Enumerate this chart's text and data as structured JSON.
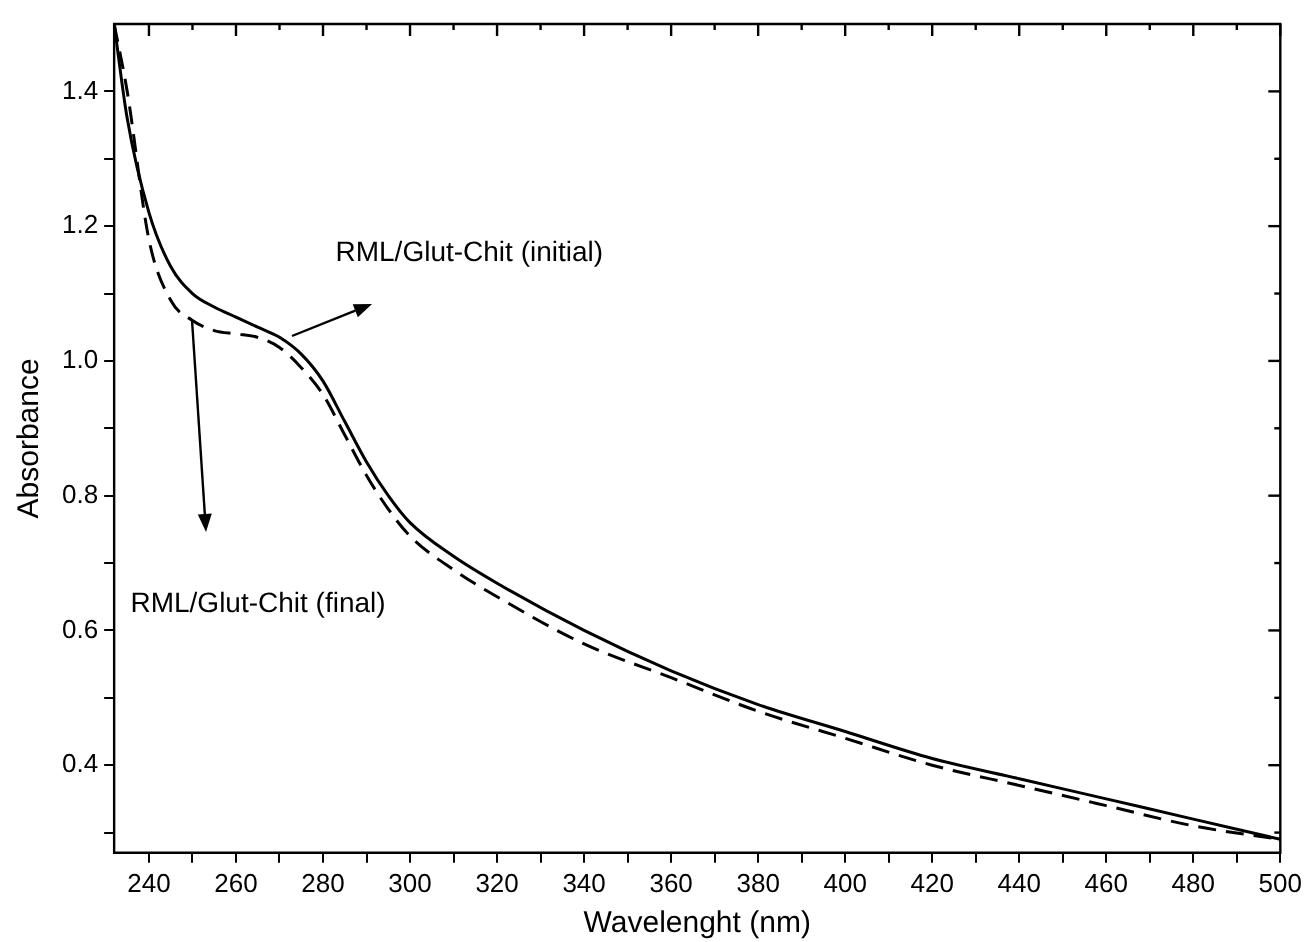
{
  "chart_data": {
    "type": "line",
    "xlabel": "Wavelenght (nm)",
    "ylabel": "Absorbance",
    "xlim": [
      232,
      500
    ],
    "ylim": [
      0.27,
      1.5
    ],
    "xticks": [
      240,
      {
        "value": 250,
        "label": null
      },
      260,
      {
        "value": 270,
        "label": null
      },
      280,
      {
        "value": 290,
        "label": null
      },
      300,
      {
        "value": 310,
        "label": null
      },
      320,
      {
        "value": 330,
        "label": null
      },
      340,
      {
        "value": 350,
        "label": null
      },
      360,
      {
        "value": 370,
        "label": null
      },
      380,
      {
        "value": 390,
        "label": null
      },
      400,
      {
        "value": 410,
        "label": null
      },
      420,
      {
        "value": 430,
        "label": null
      },
      440,
      {
        "value": 450,
        "label": null
      },
      460,
      {
        "value": 470,
        "label": null
      },
      480,
      {
        "value": 490,
        "label": null
      },
      500
    ],
    "yticks": [
      {
        "value": 0.3,
        "label": null
      },
      {
        "value": 0.4,
        "label": "0.4"
      },
      {
        "value": 0.5,
        "label": null
      },
      {
        "value": 0.6,
        "label": "0.6"
      },
      {
        "value": 0.7,
        "label": null
      },
      {
        "value": 0.8,
        "label": "0.8"
      },
      {
        "value": 0.9,
        "label": null
      },
      {
        "value": 1.0,
        "label": "1.0"
      },
      {
        "value": 1.1,
        "label": null
      },
      {
        "value": 1.2,
        "label": "1.2"
      },
      {
        "value": 1.3,
        "label": null
      },
      {
        "value": 1.4,
        "label": "1.4"
      }
    ],
    "annotations": [
      "RML/Glut-Chit (initial)",
      "RML/Glut-Chit (final)"
    ],
    "grid": false,
    "legend": false,
    "marker": "none",
    "x": [
      232,
      235,
      240,
      245,
      250,
      255,
      260,
      265,
      270,
      275,
      280,
      285,
      290,
      295,
      300,
      310,
      320,
      340,
      360,
      380,
      400,
      420,
      440,
      460,
      480,
      500
    ],
    "series": [
      {
        "color": "#000000",
        "line_style": "solid",
        "values": [
          1.5,
          1.36,
          1.22,
          1.14,
          1.1,
          1.08,
          1.065,
          1.05,
          1.035,
          1.01,
          0.97,
          0.91,
          0.85,
          0.8,
          0.76,
          0.71,
          0.67,
          0.6,
          0.54,
          0.49,
          0.45,
          0.41,
          0.38,
          0.35,
          0.32,
          0.29
        ]
      },
      {
        "color": "#000000",
        "line_style": "dashed",
        "values": [
          1.5,
          1.4,
          1.18,
          1.09,
          1.06,
          1.045,
          1.04,
          1.035,
          1.02,
          0.99,
          0.95,
          0.89,
          0.83,
          0.78,
          0.74,
          0.69,
          0.65,
          0.58,
          0.53,
          0.48,
          0.44,
          0.4,
          0.37,
          0.34,
          0.31,
          0.29
        ]
      }
    ]
  }
}
